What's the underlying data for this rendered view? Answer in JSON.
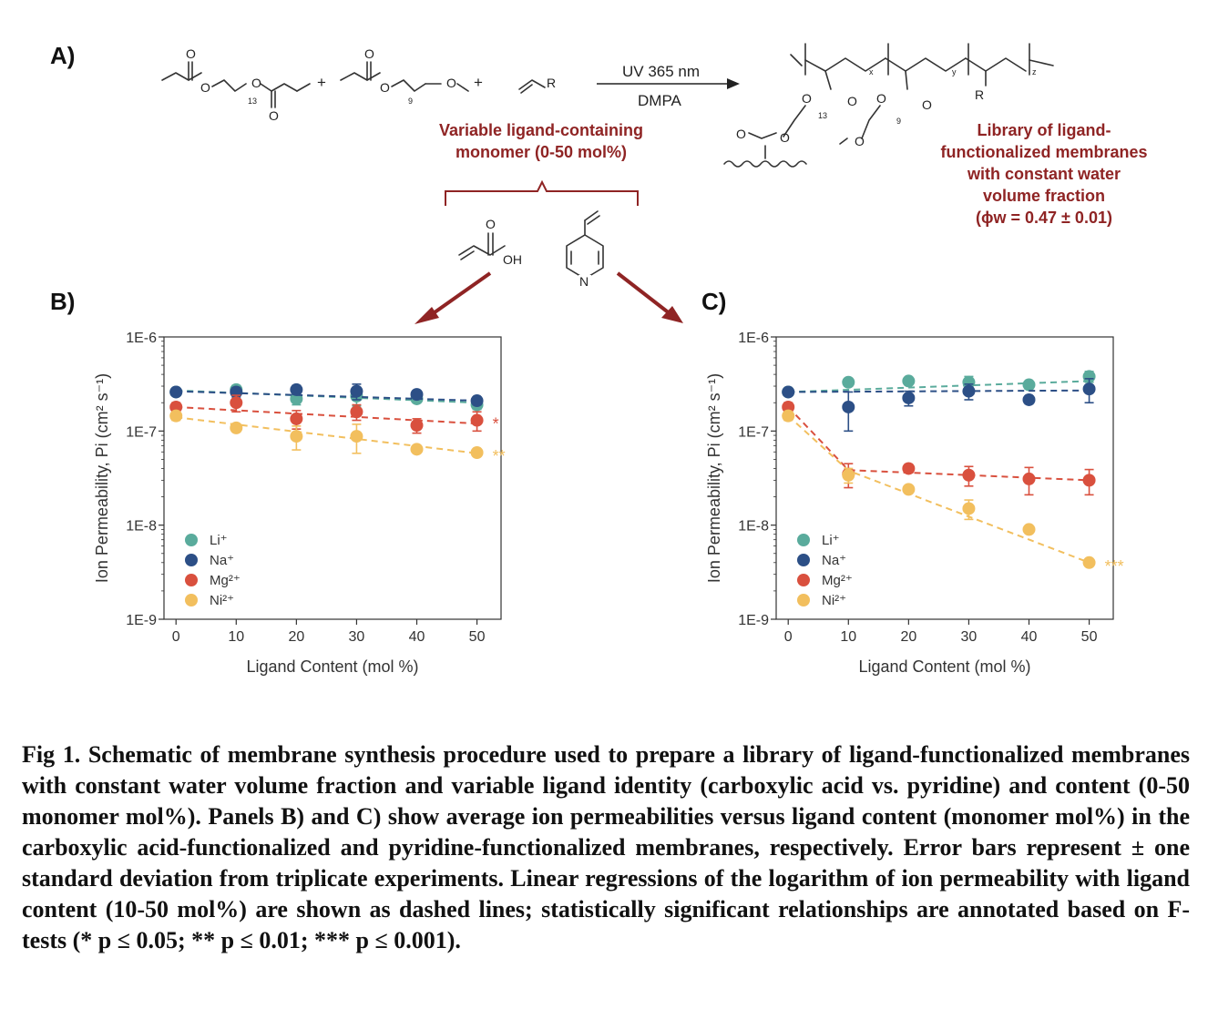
{
  "panel_labels": {
    "a": "A)",
    "b": "B)",
    "c": "C)"
  },
  "scheme": {
    "atoms": {
      "O": "O",
      "OH": "OH",
      "N": "N",
      "R": "R"
    },
    "subscripts": {
      "n13": "13",
      "n9": "9",
      "x": "x",
      "y": "y",
      "z": "z"
    },
    "plus": "+",
    "condition_top": "UV 365 nm",
    "condition_bottom": "DMPA",
    "variable_monomer": [
      "Variable ligand-containing",
      "monomer (0-50 mol%)"
    ],
    "library": [
      "Library of ligand-",
      "functionalized membranes",
      "with constant water",
      "volume fraction",
      "(ϕw = 0.47 ± 0.01)"
    ]
  },
  "colors": {
    "li": "#5aab9c",
    "na": "#2c4f86",
    "mg": "#d9503e",
    "ni": "#f2bf5e",
    "arrow": "#8f2424",
    "text_red": "#8f2424"
  },
  "chart_data": [
    {
      "type": "scatter",
      "panel": "B)",
      "xlabel": "Ligand Content (mol %)",
      "ylabel": "Ion Permeability, Pi (cm² s⁻¹)",
      "xlim": [
        -2,
        54
      ],
      "ylim": [
        1e-09,
        1e-06
      ],
      "yscale": "log",
      "x_ticks": [
        "0",
        "10",
        "20",
        "30",
        "40",
        "50"
      ],
      "y_ticks": [
        "1E-6",
        "1E-7",
        "1E-8",
        "1E-9"
      ],
      "x": [
        0,
        10,
        20,
        30,
        40,
        50
      ],
      "legend_position": "lower-left",
      "series": [
        {
          "name": "Li⁺",
          "values": [
            2.6e-07,
            2.75e-07,
            2.2e-07,
            2.35e-07,
            2.2e-07,
            1.9e-07
          ],
          "err": [
            2e-08,
            3e-08,
            3e-08,
            5e-08,
            2e-08,
            2e-08
          ],
          "fit": [
            2.7e-07,
            2e-07
          ],
          "sig": ""
        },
        {
          "name": "Na⁺",
          "values": [
            2.6e-07,
            2.6e-07,
            2.75e-07,
            2.65e-07,
            2.45e-07,
            2.1e-07
          ],
          "err": [
            2e-08,
            3e-08,
            3e-08,
            5e-08,
            2e-08,
            2e-08
          ],
          "fit": [
            2.65e-07,
            2.1e-07
          ],
          "sig": ""
        },
        {
          "name": "Mg²⁺",
          "values": [
            1.8e-07,
            2e-07,
            1.35e-07,
            1.6e-07,
            1.15e-07,
            1.3e-07
          ],
          "err": [
            2e-08,
            4e-08,
            3e-08,
            3e-08,
            2e-08,
            3e-08
          ],
          "fit": [
            1.8e-07,
            1.2e-07
          ],
          "sig": "*"
        },
        {
          "name": "Ni²⁺",
          "values": [
            1.45e-07,
            1.08e-07,
            8.8e-08,
            8.8e-08,
            6.4e-08,
            5.9e-08
          ],
          "err": [
            1.5e-08,
            1e-08,
            2.5e-08,
            3e-08,
            5e-09,
            5e-09
          ],
          "fit": [
            1.4e-07,
            5.8e-08
          ],
          "sig": "**"
        }
      ]
    },
    {
      "type": "scatter",
      "panel": "C)",
      "xlabel": "Ligand Content (mol %)",
      "ylabel": "Ion Permeability, Pi (cm² s⁻¹)",
      "xlim": [
        -2,
        54
      ],
      "ylim": [
        1e-09,
        1e-06
      ],
      "yscale": "log",
      "x_ticks": [
        "0",
        "10",
        "20",
        "30",
        "40",
        "50"
      ],
      "y_ticks": [
        "1E-6",
        "1E-7",
        "1E-8",
        "1E-9"
      ],
      "x": [
        0,
        10,
        20,
        30,
        40,
        50
      ],
      "legend_position": "lower-left",
      "series": [
        {
          "name": "Li⁺",
          "values": [
            2.6e-07,
            3.3e-07,
            3.4e-07,
            3.3e-07,
            3.1e-07,
            3.8e-07
          ],
          "err": [
            2e-08,
            3e-08,
            3e-08,
            5e-08,
            3e-08,
            5e-08
          ],
          "fit": [
            2.6e-07,
            3.4e-07
          ],
          "sig": ""
        },
        {
          "name": "Na⁺",
          "values": [
            2.6e-07,
            1.8e-07,
            2.25e-07,
            2.65e-07,
            2.15e-07,
            2.8e-07
          ],
          "err": [
            2e-08,
            8e-08,
            4e-08,
            5e-08,
            2e-08,
            8e-08
          ],
          "fit": [
            2.6e-07,
            2.7e-07
          ],
          "sig": ""
        },
        {
          "name": "Mg²⁺",
          "values": [
            1.8e-07,
            3.5e-08,
            4e-08,
            3.4e-08,
            3.1e-08,
            3e-08
          ],
          "err": [
            2e-08,
            1e-08,
            4e-09,
            8e-09,
            1e-08,
            9e-09
          ],
          "fit": [
            1.8e-07,
            3.85e-08,
            3e-08
          ],
          "sig": ""
        },
        {
          "name": "Ni²⁺",
          "values": [
            1.45e-07,
            3.4e-08,
            2.4e-08,
            1.5e-08,
            9e-09,
            4e-09
          ],
          "err": [
            1.5e-08,
            6e-09,
            2e-09,
            3.5e-09,
            5e-10,
            3e-10
          ],
          "fit": [
            1.45e-07,
            3.8e-08,
            4e-09
          ],
          "sig": "***"
        }
      ]
    }
  ],
  "caption": "Fig 1. Schematic of membrane synthesis procedure used to prepare a library of ligand-functionalized membranes with constant water volume fraction and variable ligand identity (carboxylic acid vs. pyridine) and content (0-50 monomer mol%). Panels B) and C) show average ion permeabilities versus ligand content (monomer mol%) in the carboxylic acid-functionalized and pyridine-functionalized membranes, respectively. Error bars represent ± one standard deviation from triplicate experiments. Linear regressions of the logarithm of ion permeability with ligand content (10-50 mol%) are shown as dashed lines; statistically significant relationships are annotated based on F-tests (* p ≤ 0.05; ** p ≤ 0.01; *** p ≤ 0.001)."
}
